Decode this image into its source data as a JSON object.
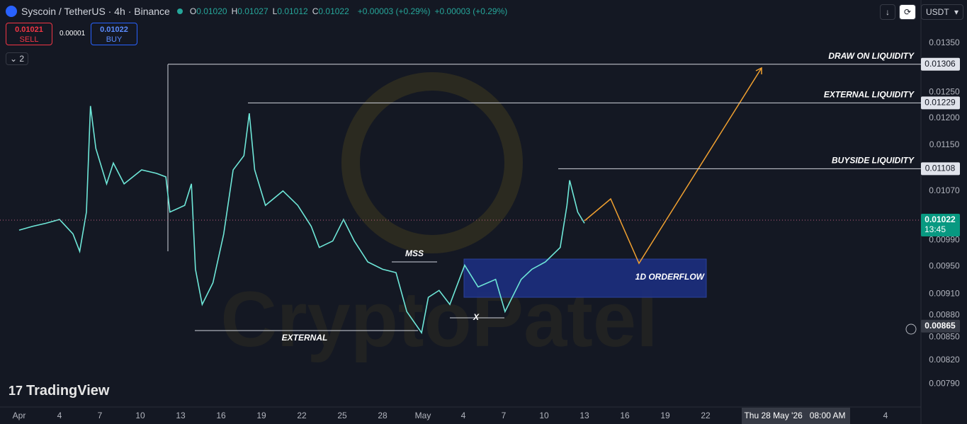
{
  "header": {
    "symbol": "Syscoin / TetherUS · 4h · Binance",
    "ohlc": [
      {
        "k": "O",
        "v": "0.01020"
      },
      {
        "k": "H",
        "v": "0.01027"
      },
      {
        "k": "L",
        "v": "0.01012"
      },
      {
        "k": "C",
        "v": "0.01022"
      }
    ],
    "change": "+0.00003 (+0.29%)",
    "change2": "+0.00003 (+0.29%)"
  },
  "trade": {
    "sell_price": "0.01021",
    "sell": "SELL",
    "spread": "0.00001",
    "buy_price": "0.01022",
    "buy": "BUY"
  },
  "indicators_count": "2",
  "currency": "USDT",
  "brand": "TradingView",
  "watermark": "CryptoPatel",
  "price_axis": [
    "0.01350",
    "0.01250",
    "0.01200",
    "0.01150",
    "0.01070",
    "0.00990",
    "0.00950",
    "0.00910",
    "0.00880",
    "0.00850",
    "0.00820",
    "0.00790"
  ],
  "levels": [
    {
      "label": "DRAW ON LIQUIDITY",
      "price": "0.01306"
    },
    {
      "label": "EXTERNAL LIQUIDITY",
      "price": "0.01229"
    },
    {
      "label": "BUYSIDE LIQUIDITY",
      "price": "0.01108"
    }
  ],
  "current": {
    "price": "0.01022",
    "countdown": "13:45"
  },
  "crosshair_price": "0.00865",
  "annotations": {
    "external": "EXTERNAL",
    "mss": "MSS",
    "x": "X",
    "orderflow": "1D ORDERFLOW"
  },
  "date_axis": [
    "Apr",
    "4",
    "7",
    "10",
    "13",
    "16",
    "19",
    "22",
    "25",
    "28",
    "May",
    "4",
    "7",
    "10",
    "13",
    "16",
    "19",
    "22"
  ],
  "date_axis_end": "4",
  "date_cursor": "Thu 28 May '26   08:00 AM",
  "price_path": {
    "day": [
      0,
      1,
      2,
      3,
      4,
      4.5,
      5,
      5.3,
      5.7,
      6.5,
      7,
      7.8,
      9.1,
      10.2,
      10.9,
      11.2,
      12.3,
      12.8,
      13.1,
      13.6,
      14.4,
      15.2,
      15.9,
      16.7,
      17.1,
      17.5,
      18.3,
      19.6,
      20.7,
      21.7,
      22.3,
      23.3,
      24.1,
      24.9,
      25.9,
      27,
      28,
      28.8,
      29.9,
      30.4,
      31.2,
      32,
      33.1,
      34.1,
      35.4,
      36.1,
      37.3,
      38.1,
      39.1,
      40.2,
      40.7,
      40.9,
      41.5,
      42
    ],
    "close": [
      0.01006,
      0.01012,
      0.01017,
      0.01023,
      0.01,
      0.00973,
      0.01035,
      0.01223,
      0.01144,
      0.01082,
      0.01118,
      0.01082,
      0.01106,
      0.011,
      0.01094,
      0.01035,
      0.01046,
      0.01082,
      0.00946,
      0.00895,
      0.00926,
      0.01,
      0.01106,
      0.01131,
      0.01209,
      0.01106,
      0.01046,
      0.0107,
      0.01046,
      0.01012,
      0.00979,
      0.00989,
      0.01023,
      0.00989,
      0.00957,
      0.00946,
      0.00941,
      0.00885,
      0.00856,
      0.00905,
      0.00915,
      0.00895,
      0.00952,
      0.0092,
      0.00931,
      0.00885,
      0.00931,
      0.00946,
      0.00957,
      0.00979,
      0.01046,
      0.01088,
      0.01035,
      0.01017
    ]
  }
}
